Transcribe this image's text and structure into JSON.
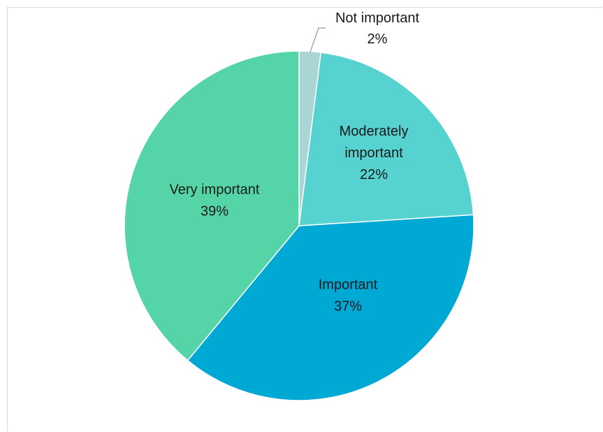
{
  "chart_data": {
    "type": "pie",
    "title": "",
    "slices": [
      {
        "label": "Not important",
        "label_lines": [
          "Not important"
        ],
        "value": 2,
        "value_label": "2%",
        "color": "#a9d5d5"
      },
      {
        "label": "Moderately important",
        "label_lines": [
          "Moderately",
          "important"
        ],
        "value": 22,
        "value_label": "22%",
        "color": "#56d3d0"
      },
      {
        "label": "Important",
        "label_lines": [
          "Important"
        ],
        "value": 37,
        "value_label": "37%",
        "color": "#00a8d4"
      },
      {
        "label": "Very important",
        "label_lines": [
          "Very important"
        ],
        "value": 39,
        "value_label": "39%",
        "color": "#55d4a8"
      }
    ],
    "start_angle_deg": 0,
    "direction": "clockwise",
    "legend": "none",
    "data_labels": "category and percentage"
  }
}
